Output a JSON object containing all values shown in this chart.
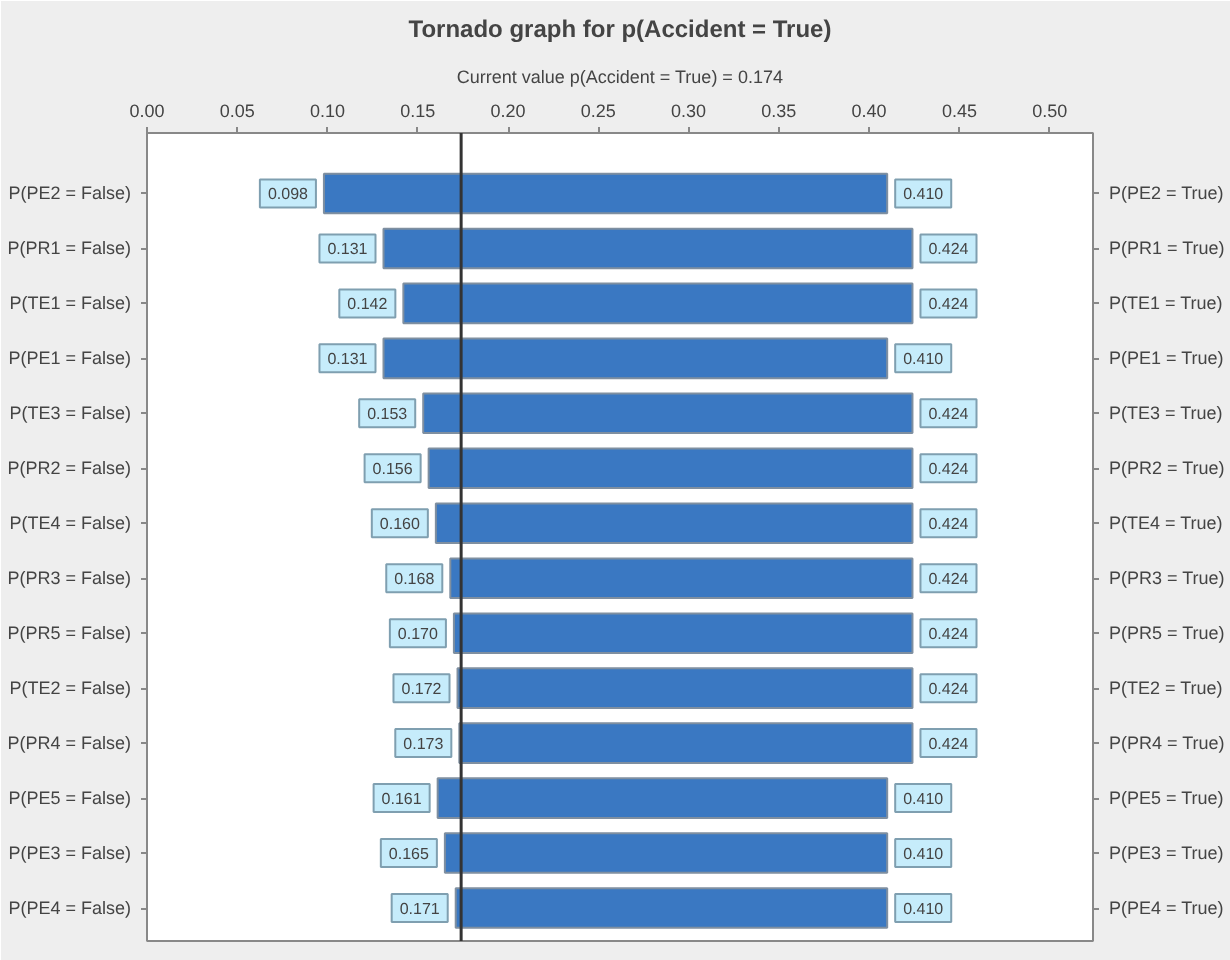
{
  "chart_data": {
    "type": "bar",
    "orientation": "horizontal",
    "title": "Tornado graph for p(Accident = True)",
    "subtitle": "Current value p(Accident = True) = 0.174",
    "categories": [
      "P(PE2 = False)",
      "P(PR1 = False)",
      "P(TE1 = False)",
      "P(PE1 = False)",
      "P(TE3 = False)",
      "P(PR2 = False)",
      "P(TE4 = False)",
      "P(PR3 = False)",
      "P(PR5 = False)",
      "P(TE2 = False)",
      "P(PR4 = False)",
      "P(PE5 = False)",
      "P(PE3 = False)",
      "P(PE4 = False)"
    ],
    "y2_categories": [
      "P(PE2 = True)",
      "P(PR1 = True)",
      "P(TE1 = True)",
      "P(PE1 = True)",
      "P(TE3 = True)",
      "P(PR2 = True)",
      "P(TE4 = True)",
      "P(PR3 = True)",
      "P(PR5 = True)",
      "P(TE2 = True)",
      "P(PR4 = True)",
      "P(PE5 = True)",
      "P(PE3 = True)",
      "P(PE4 = True)"
    ],
    "base": [
      0.098,
      0.131,
      0.142,
      0.131,
      0.153,
      0.156,
      0.16,
      0.168,
      0.17,
      0.172,
      0.173,
      0.161,
      0.165,
      0.171
    ],
    "values": [
      0.312,
      0.293,
      0.282,
      0.279,
      0.271,
      0.268,
      0.264,
      0.256,
      0.254,
      0.252,
      0.251,
      0.249,
      0.245,
      0.239
    ],
    "color": "#3a78c2",
    "xlim": [
      0,
      0.524
    ],
    "xticks": [
      {
        "value": 0,
        "label": "0.00"
      },
      {
        "value": 0.05,
        "label": "0.05"
      },
      {
        "value": 0.1,
        "label": "0.10"
      },
      {
        "value": 0.15,
        "label": "0.15"
      },
      {
        "value": 0.2,
        "label": "0.20"
      },
      {
        "value": 0.25,
        "label": "0.25"
      },
      {
        "value": 0.3,
        "label": "0.30"
      },
      {
        "value": 0.35,
        "label": "0.35"
      },
      {
        "value": 0.4,
        "label": "0.40"
      },
      {
        "value": 0.45,
        "label": "0.45"
      },
      {
        "value": 0.5,
        "label": "0.50"
      }
    ],
    "ref_lines": [
      {
        "axis": "x",
        "value": 0.174,
        "color": "#333333"
      }
    ],
    "grid": false,
    "annotations": [
      {
        "text": "0.098",
        "x": 0.098,
        "y": "P(PE2 = False)"
      },
      {
        "text": "0.410",
        "x": 0.41,
        "y": "P(PE2 = False)"
      },
      {
        "text": "0.131",
        "x": 0.131,
        "y": "P(PR1 = False)"
      },
      {
        "text": "0.424",
        "x": 0.424,
        "y": "P(PR1 = False)"
      },
      {
        "text": "0.142",
        "x": 0.142,
        "y": "P(TE1 = False)"
      },
      {
        "text": "0.424",
        "x": 0.424,
        "y": "P(TE1 = False)"
      },
      {
        "text": "0.131",
        "x": 0.131,
        "y": "P(PE1 = False)"
      },
      {
        "text": "0.410",
        "x": 0.41,
        "y": "P(PE1 = False)"
      },
      {
        "text": "0.153",
        "x": 0.153,
        "y": "P(TE3 = False)"
      },
      {
        "text": "0.424",
        "x": 0.424,
        "y": "P(TE3 = False)"
      },
      {
        "text": "0.156",
        "x": 0.156,
        "y": "P(PR2 = False)"
      },
      {
        "text": "0.424",
        "x": 0.424,
        "y": "P(PR2 = False)"
      },
      {
        "text": "0.160",
        "x": 0.16,
        "y": "P(TE4 = False)"
      },
      {
        "text": "0.424",
        "x": 0.424,
        "y": "P(TE4 = False)"
      },
      {
        "text": "0.168",
        "x": 0.168,
        "y": "P(PR3 = False)"
      },
      {
        "text": "0.424",
        "x": 0.424,
        "y": "P(PR3 = False)"
      },
      {
        "text": "0.170",
        "x": 0.17,
        "y": "P(PR5 = False)"
      },
      {
        "text": "0.424",
        "x": 0.424,
        "y": "P(PR5 = False)"
      },
      {
        "text": "0.172",
        "x": 0.172,
        "y": "P(TE2 = False)"
      },
      {
        "text": "0.424",
        "x": 0.424,
        "y": "P(TE2 = False)"
      },
      {
        "text": "0.173",
        "x": 0.173,
        "y": "P(PR4 = False)"
      },
      {
        "text": "0.424",
        "x": 0.424,
        "y": "P(PR4 = False)"
      },
      {
        "text": "0.161",
        "x": 0.161,
        "y": "P(PE5 = False)"
      },
      {
        "text": "0.410",
        "x": 0.41,
        "y": "P(PE5 = False)"
      },
      {
        "text": "0.165",
        "x": 0.165,
        "y": "P(PE3 = False)"
      },
      {
        "text": "0.410",
        "x": 0.41,
        "y": "P(PE3 = False)"
      },
      {
        "text": "0.171",
        "x": 0.171,
        "y": "P(PE4 = False)"
      },
      {
        "text": "0.410",
        "x": 0.41,
        "y": "P(PE4 = False)"
      }
    ]
  }
}
